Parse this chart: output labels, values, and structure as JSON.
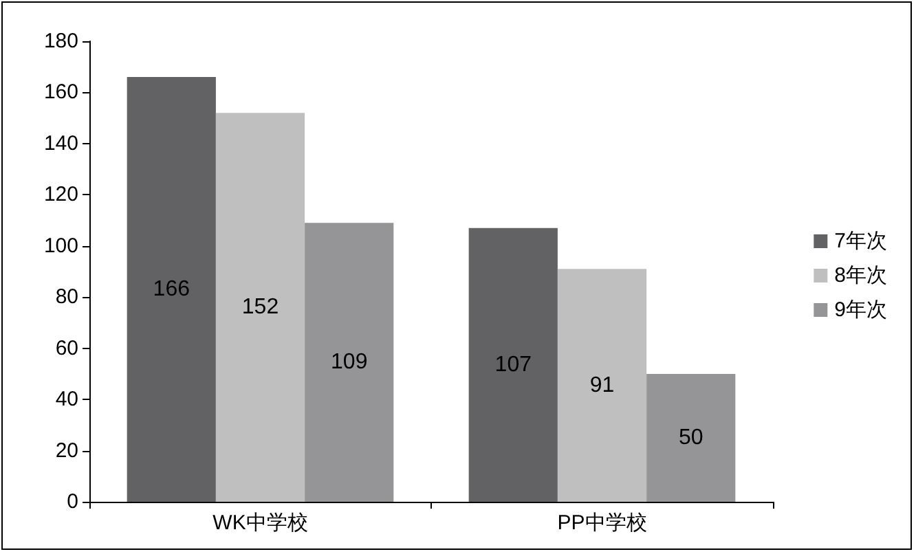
{
  "chart_data": {
    "type": "bar",
    "categories": [
      "WK中学校",
      "PP中学校"
    ],
    "series": [
      {
        "name": "7年次",
        "color": "#626264",
        "values": [
          166,
          107
        ]
      },
      {
        "name": "8年次",
        "color": "#bfbfc0",
        "values": [
          152,
          91
        ]
      },
      {
        "name": "9年次",
        "color": "#959597",
        "values": [
          109,
          50
        ]
      }
    ],
    "ylim": [
      0,
      180
    ],
    "yticks": [
      0,
      20,
      40,
      60,
      80,
      100,
      120,
      140,
      160,
      180
    ],
    "grid": false,
    "legend": "right",
    "data_labels": true
  }
}
